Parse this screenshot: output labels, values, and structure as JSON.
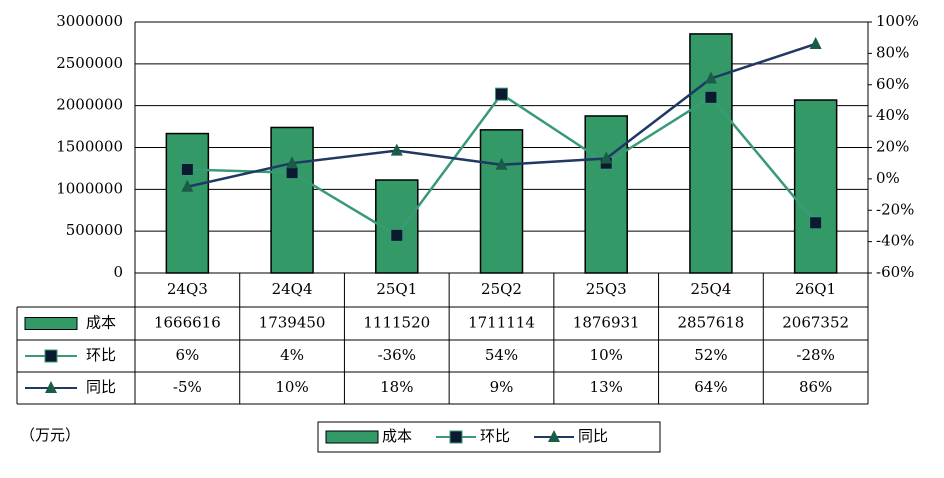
{
  "chart_data": {
    "type": "bar",
    "categories": [
      "24Q3",
      "24Q4",
      "25Q1",
      "25Q2",
      "25Q3",
      "25Q4",
      "26Q1"
    ],
    "series": [
      {
        "name": "成本",
        "type": "bar",
        "color": "#339966",
        "values": [
          1666616,
          1739450,
          1111520,
          1711114,
          1876931,
          2857618,
          2067352
        ]
      },
      {
        "name": "环比",
        "type": "line",
        "axis": "y2",
        "color": "#3a9a78",
        "marker": "square",
        "marker_color": "#0b1a2e",
        "values": [
          6,
          4,
          -36,
          54,
          10,
          52,
          -28
        ],
        "value_labels": [
          "6%",
          "4%",
          "-36%",
          "54%",
          "10%",
          "52%",
          "-28%"
        ]
      },
      {
        "name": "同比",
        "type": "line",
        "axis": "y2",
        "color": "#1f3864",
        "marker": "triangle",
        "marker_color": "#1a5c46",
        "values": [
          -5,
          10,
          18,
          9,
          13,
          64,
          86
        ],
        "value_labels": [
          "-5%",
          "10%",
          "18%",
          "9%",
          "13%",
          "64%",
          "86%"
        ]
      }
    ],
    "ylim": [
      0,
      3000000
    ],
    "yticks": [
      0,
      500000,
      1000000,
      1500000,
      2000000,
      2500000,
      3000000
    ],
    "y2lim": [
      -60,
      100
    ],
    "y2ticks": [
      {
        "value": -60,
        "label": "-60%"
      },
      {
        "value": -40,
        "label": "-40%"
      },
      {
        "value": -20,
        "label": "-20%"
      },
      {
        "value": 0,
        "label": "0%"
      },
      {
        "value": 20,
        "label": "20%"
      },
      {
        "value": 40,
        "label": "40%"
      },
      {
        "value": 60,
        "label": "60%"
      },
      {
        "value": 80,
        "label": "80%"
      },
      {
        "value": 100,
        "label": "100%"
      }
    ],
    "grid": true,
    "unit_note": "（万元）",
    "legend": "bottom"
  }
}
